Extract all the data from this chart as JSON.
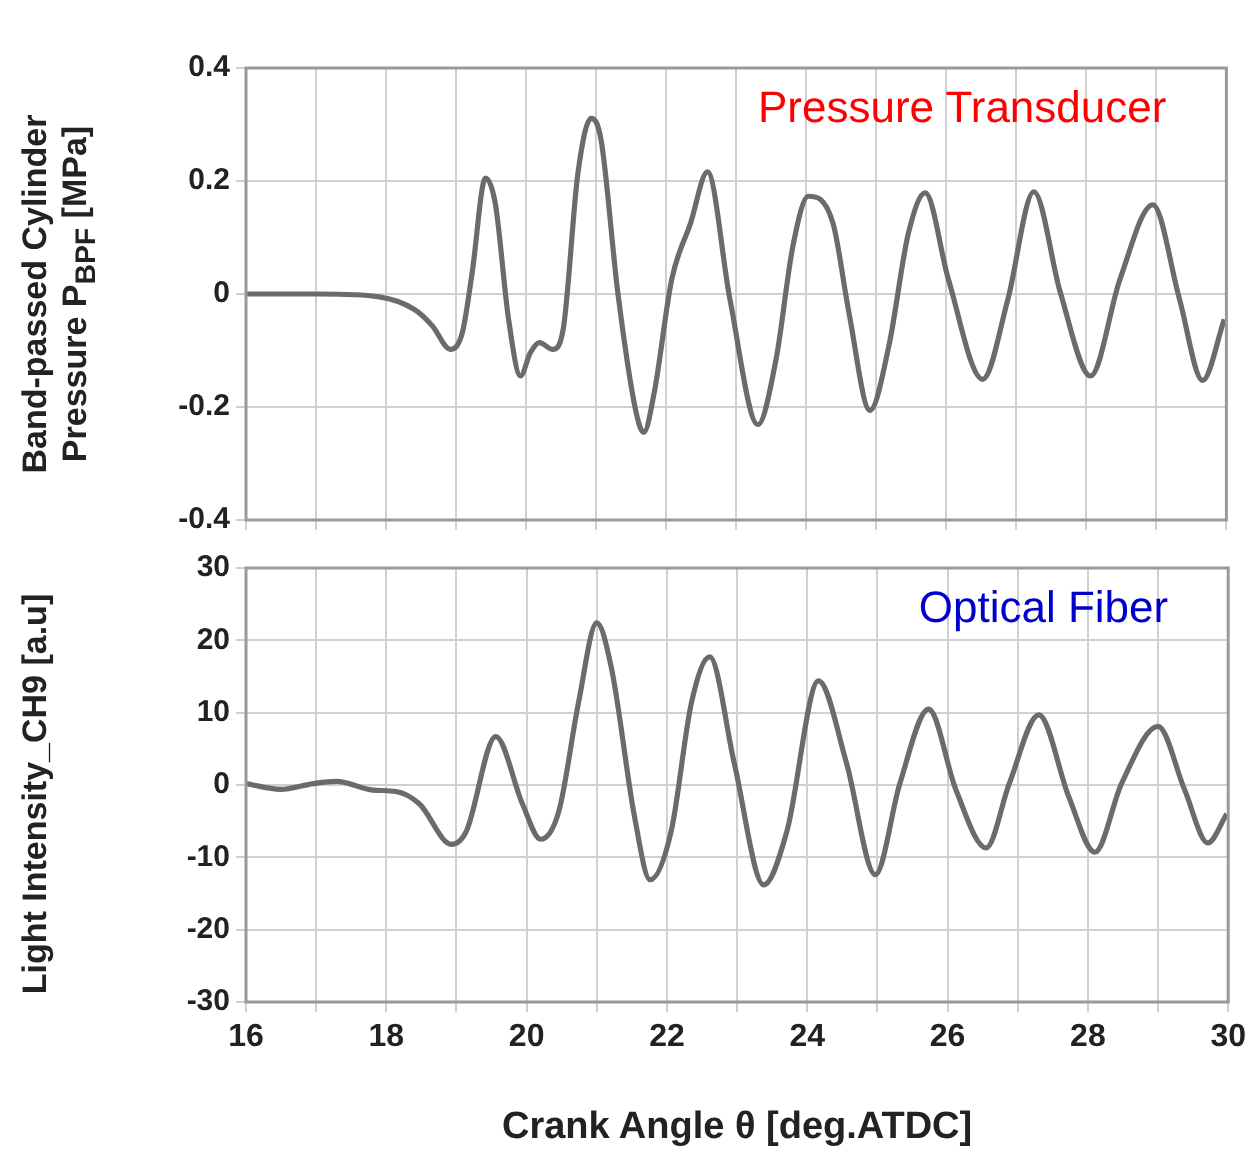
{
  "chart_data": [
    {
      "type": "line",
      "ylabel": "Band-passed Cylinder Pressure P$_{BPF}$ [MPa]",
      "annotations": [
        "Pressure Transducer"
      ],
      "grid": true,
      "tick_labels": "y",
      "xlim": [
        16,
        30
      ],
      "ylim": [
        -0.4,
        0.4
      ],
      "xticks": [
        16,
        {
          "value": 17,
          "label": null
        },
        18,
        {
          "value": 19,
          "label": null
        },
        20,
        {
          "value": 21,
          "label": null
        },
        22,
        {
          "value": 23,
          "label": null
        },
        24,
        {
          "value": 25,
          "label": null
        },
        26,
        {
          "value": 27,
          "label": null
        },
        28,
        {
          "value": 29,
          "label": null
        },
        30
      ],
      "yticks": [
        -0.4,
        -0.2,
        {
          "value": 0,
          "label": "0"
        },
        0.2,
        0.4
      ],
      "series": [
        {
          "color": "#6b6b6b",
          "x": [
            16,
            17.06,
            17.9,
            18.4,
            18.66,
            18.92,
            19.09,
            19.23,
            19.42,
            19.56,
            19.75,
            19.92,
            20.06,
            20.19,
            20.38,
            20.53,
            20.74,
            20.93,
            21.07,
            21.31,
            21.57,
            21.68,
            21.83,
            22.08,
            22.35,
            22.59,
            22.91,
            23.31,
            23.57,
            23.81,
            24.03,
            24.38,
            24.61,
            24.91,
            25.18,
            25.46,
            25.7,
            26.03,
            26.52,
            26.88,
            27.25,
            27.63,
            28.06,
            28.48,
            28.95,
            29.33,
            29.66,
            29.97
          ],
          "values": [
            0,
            0,
            -0.005,
            -0.027,
            -0.056,
            -0.098,
            -0.068,
            0.038,
            0.205,
            0.16,
            -0.045,
            -0.145,
            -0.104,
            -0.086,
            -0.098,
            -0.062,
            0.214,
            0.311,
            0.273,
            0.002,
            -0.209,
            -0.245,
            -0.174,
            0.026,
            0.126,
            0.216,
            -0.009,
            -0.231,
            -0.115,
            0.085,
            0.173,
            0.126,
            -0.033,
            -0.206,
            -0.092,
            0.108,
            0.179,
            0.026,
            -0.151,
            -0.009,
            0.181,
            0.002,
            -0.145,
            0.026,
            0.158,
            -0.009,
            -0.153,
            -0.045
          ]
        }
      ]
    },
    {
      "type": "line",
      "ylabel": "Light Intensity_CH9 [a.u]",
      "xlabel": "Crank Angle θ [deg.ATDC]",
      "annotations": [
        "Optical Fiber"
      ],
      "grid": true,
      "xlim": [
        16,
        30
      ],
      "ylim": [
        -30,
        30
      ],
      "xticks": [
        16,
        {
          "value": 17,
          "label": null
        },
        18,
        {
          "value": 19,
          "label": null
        },
        20,
        {
          "value": 21,
          "label": null
        },
        22,
        {
          "value": 23,
          "label": null
        },
        24,
        {
          "value": 25,
          "label": null
        },
        26,
        {
          "value": 27,
          "label": null
        },
        28,
        {
          "value": 29,
          "label": null
        },
        30
      ],
      "yticks": [
        -30,
        -20,
        -10,
        0,
        10,
        20,
        30
      ],
      "series": [
        {
          "color": "#6b6b6b",
          "x": [
            16,
            16.49,
            16.96,
            17.29,
            17.81,
            18.14,
            18.47,
            18.93,
            19.14,
            19.56,
            19.94,
            20.2,
            20.46,
            20.74,
            21.0,
            21.21,
            21.54,
            21.76,
            22.06,
            22.35,
            22.61,
            22.96,
            23.38,
            23.71,
            24.16,
            24.56,
            24.97,
            25.32,
            25.73,
            26.12,
            26.55,
            26.88,
            27.3,
            27.73,
            28.1,
            28.48,
            29.0,
            29.38,
            29.71,
            29.98
          ],
          "values": [
            0.2,
            -0.6,
            0.2,
            0.5,
            -0.7,
            -0.9,
            -2.6,
            -8.2,
            -6.4,
            6.7,
            -2.6,
            -7.5,
            -3.6,
            11.4,
            22.4,
            16.1,
            -4.5,
            -13.1,
            -6.4,
            11.4,
            17.7,
            3.0,
            -13.8,
            -6.4,
            14.4,
            3.0,
            -12.4,
            0.2,
            10.5,
            -0.7,
            -8.7,
            0.2,
            9.7,
            -1.7,
            -9.3,
            0.2,
            8.1,
            -0.7,
            -8.0,
            -4.0
          ]
        }
      ]
    }
  ]
}
